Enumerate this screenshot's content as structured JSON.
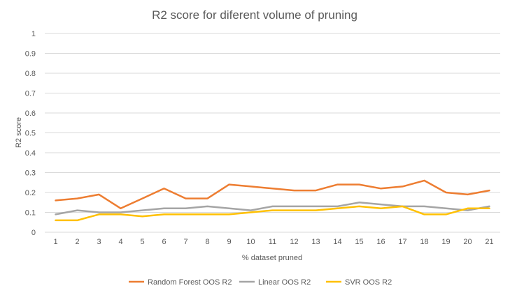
{
  "chart_data": {
    "type": "line",
    "title": "R2 score for diferent volume of pruning",
    "xlabel": "% dataset pruned",
    "ylabel": "R2 score",
    "categories": [
      "1",
      "2",
      "3",
      "4",
      "5",
      "6",
      "7",
      "8",
      "9",
      "10",
      "11",
      "12",
      "13",
      "14",
      "15",
      "16",
      "17",
      "18",
      "19",
      "20",
      "21"
    ],
    "ylim": [
      0,
      1
    ],
    "yticks": [
      "0",
      "0.1",
      "0.2",
      "0.3",
      "0.4",
      "0.5",
      "0.6",
      "0.7",
      "0.8",
      "0.9",
      "1"
    ],
    "grid": true,
    "legend_position": "bottom",
    "series": [
      {
        "name": "Random Forest OOS R2",
        "color": "#ED7D31",
        "values": [
          0.16,
          0.17,
          0.19,
          0.12,
          0.17,
          0.22,
          0.17,
          0.17,
          0.24,
          0.23,
          0.22,
          0.21,
          0.21,
          0.24,
          0.24,
          0.22,
          0.23,
          0.26,
          0.2,
          0.19,
          0.21
        ]
      },
      {
        "name": "Linear OOS R2",
        "color": "#A5A5A5",
        "values": [
          0.09,
          0.11,
          0.1,
          0.1,
          0.11,
          0.12,
          0.12,
          0.13,
          0.12,
          0.11,
          0.13,
          0.13,
          0.13,
          0.13,
          0.15,
          0.14,
          0.13,
          0.13,
          0.12,
          0.11,
          0.13
        ]
      },
      {
        "name": "SVR OOS R2",
        "color": "#FFC000",
        "values": [
          0.06,
          0.06,
          0.09,
          0.09,
          0.08,
          0.09,
          0.09,
          0.09,
          0.09,
          0.1,
          0.11,
          0.11,
          0.11,
          0.12,
          0.13,
          0.12,
          0.13,
          0.09,
          0.09,
          0.12,
          0.12
        ]
      }
    ]
  }
}
